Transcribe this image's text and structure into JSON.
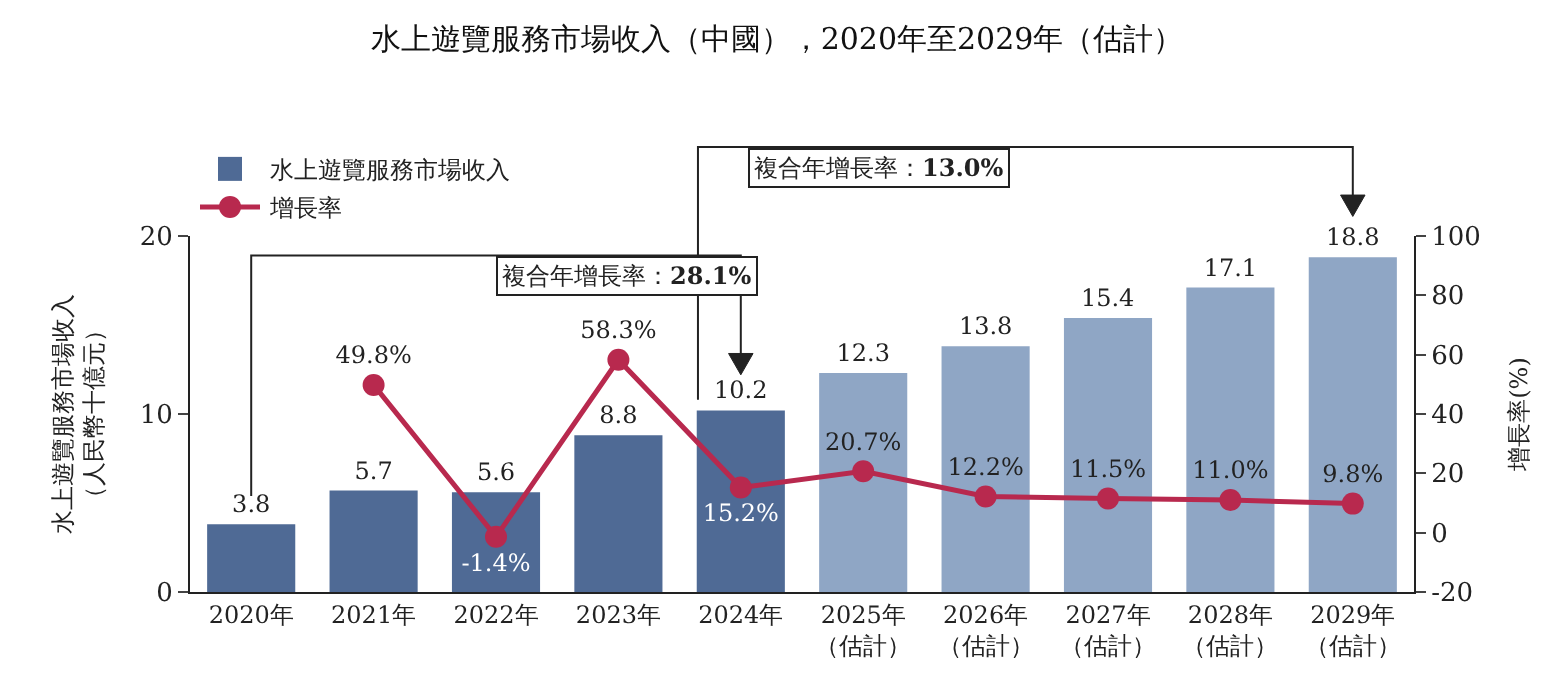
{
  "chart_data": {
    "type": "bar",
    "title": "水上遊覽服務市場收入（中國），2020年至2029年（估計）",
    "ylabel": "水上遊覽服務市場收入（人民幣十億元）",
    "y2label": "增長率(%)",
    "categories": [
      "2020年",
      "2021年",
      "2022年",
      "2023年",
      "2024年",
      "2025年（估計）",
      "2026年（估計）",
      "2027年（估計）",
      "2028年（估計）",
      "2029年（估計）"
    ],
    "series": [
      {
        "name": "水上遊覽服務市場收入",
        "colors": [
          "#4f6a95",
          "#4f6a95",
          "#4f6a95",
          "#4f6a95",
          "#4f6a95",
          "#8fa6c5",
          "#8fa6c5",
          "#8fa6c5",
          "#8fa6c5",
          "#8fa6c5"
        ],
        "values": [
          3.8,
          5.7,
          5.6,
          8.8,
          10.2,
          12.3,
          13.8,
          15.4,
          17.1,
          18.8
        ],
        "value_labels": [
          "3.8",
          "5.7",
          "5.6",
          "8.8",
          "10.2",
          "12.3",
          "13.8",
          "15.4",
          "17.1",
          "18.8"
        ]
      },
      {
        "name": "增長率",
        "type": "line",
        "axis": "y2",
        "color": "#b8294e",
        "marker": "circle",
        "values": [
          null,
          49.8,
          -1.4,
          58.3,
          15.2,
          20.7,
          12.2,
          11.5,
          11.0,
          9.8
        ],
        "value_labels": [
          null,
          "49.8%",
          "-1.4%",
          "58.3%",
          "15.2%",
          "20.7%",
          "12.2%",
          "11.5%",
          "11.0%",
          "9.8%"
        ]
      }
    ],
    "annotations": [
      "複合年增長率：**28.1%**",
      "複合年增長率：**13.0%**"
    ],
    "ylim": [
      0,
      20
    ],
    "yticks": [
      0,
      10,
      20
    ],
    "y2lim": [
      -20,
      100
    ],
    "y2ticks": [
      -20,
      0,
      20,
      40,
      60,
      80,
      100
    ],
    "legend": "top left"
  }
}
